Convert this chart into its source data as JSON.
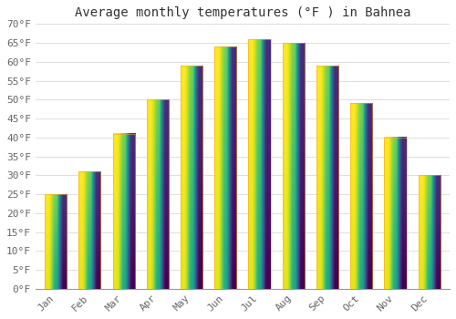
{
  "title": "Average monthly temperatures (°F ) in Bahnea",
  "months": [
    "Jan",
    "Feb",
    "Mar",
    "Apr",
    "May",
    "Jun",
    "Jul",
    "Aug",
    "Sep",
    "Oct",
    "Nov",
    "Dec"
  ],
  "values": [
    25,
    31,
    41,
    50,
    59,
    64,
    66,
    65,
    59,
    49,
    40,
    30
  ],
  "bar_color_top": "#FDD040",
  "bar_color_bottom": "#F5A623",
  "background_color": "#FFFFFF",
  "grid_color": "#DDDDDD",
  "text_color": "#666666",
  "ylim": [
    0,
    70
  ],
  "ytick_step": 5,
  "title_fontsize": 10,
  "tick_fontsize": 8,
  "font_family": "monospace",
  "bar_width": 0.65
}
